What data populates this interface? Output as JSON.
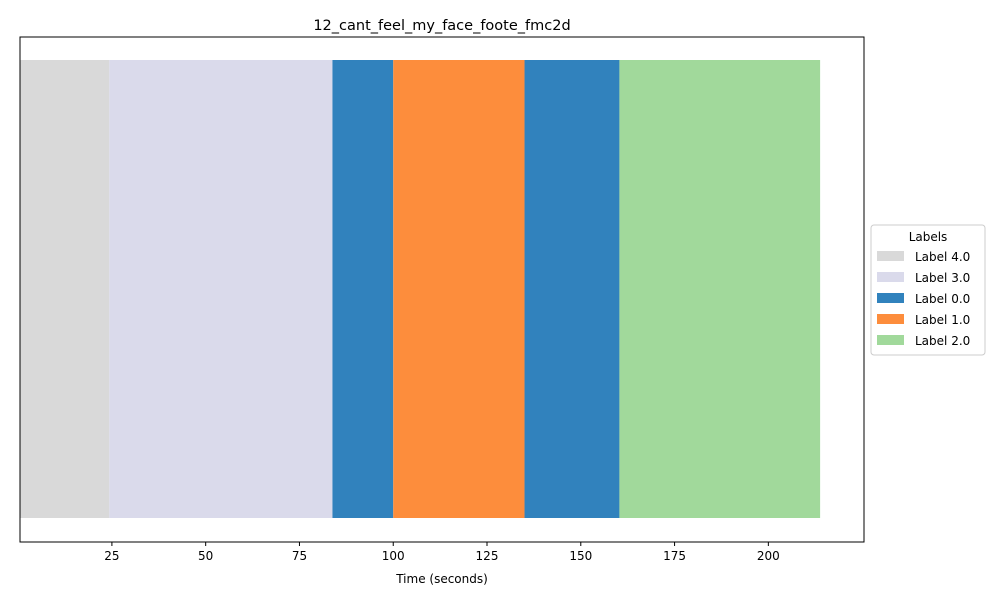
{
  "chart_data": {
    "type": "bar",
    "title": "12_cant_feel_my_face_foote_fmc2d",
    "xlabel": "Time (seconds)",
    "ylabel": "",
    "xlim": [
      0.5,
      225.5
    ],
    "xticks": [
      25,
      50,
      75,
      100,
      125,
      150,
      175,
      200
    ],
    "grid": false,
    "legend": {
      "title": "Labels",
      "placement": "center-right-outside",
      "entries": [
        {
          "label": "Label 4.0",
          "color": "#d9d9d9"
        },
        {
          "label": "Label 3.0",
          "color": "#dadaeb"
        },
        {
          "label": "Label 0.0",
          "color": "#3182bd"
        },
        {
          "label": "Label 1.0",
          "color": "#fd8d3c"
        },
        {
          "label": "Label 2.0",
          "color": "#a1d99b"
        }
      ]
    },
    "segments": [
      {
        "label": "Label 4.0",
        "start": 0.5,
        "end": 24.3,
        "color": "#d9d9d9"
      },
      {
        "label": "Label 3.0",
        "start": 24.3,
        "end": 83.8,
        "color": "#dadaeb"
      },
      {
        "label": "Label 0.0",
        "start": 83.8,
        "end": 100.0,
        "color": "#3182bd"
      },
      {
        "label": "Label 1.0",
        "start": 100.0,
        "end": 135.0,
        "color": "#fd8d3c"
      },
      {
        "label": "Label 0.0",
        "start": 135.0,
        "end": 160.3,
        "color": "#3182bd"
      },
      {
        "label": "Label 2.0",
        "start": 160.3,
        "end": 213.8,
        "color": "#a1d99b"
      }
    ]
  }
}
